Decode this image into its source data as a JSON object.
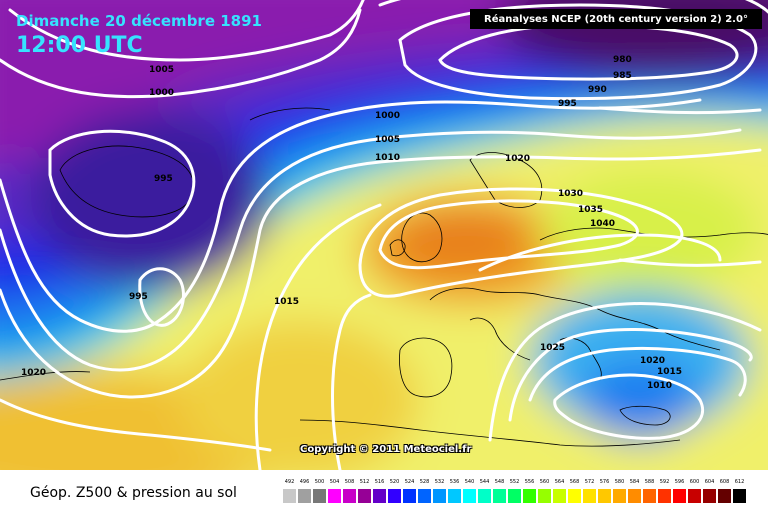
{
  "header": {
    "date": "Dimanche 20 décembre 1891",
    "time": "12:00 UTC",
    "source": "Réanalyses NCEP (20th century version 2) 2.0°"
  },
  "copyright": "Copyright © 2011 Meteociel.fr",
  "footer": {
    "label": "Géop. Z500 & pression au sol"
  },
  "legend": {
    "values": [
      "492",
      "496",
      "500",
      "504",
      "508",
      "512",
      "516",
      "520",
      "524",
      "528",
      "532",
      "536",
      "540",
      "544",
      "548",
      "552",
      "556",
      "560",
      "564",
      "568",
      "572",
      "576",
      "580",
      "584",
      "588",
      "592",
      "596",
      "600",
      "604",
      "608",
      "612"
    ],
    "colors": [
      "#c8c8c8",
      "#a0a0a0",
      "#787878",
      "#ff00ff",
      "#c800c8",
      "#960096",
      "#6400c8",
      "#3200ff",
      "#0032ff",
      "#0064ff",
      "#0096ff",
      "#00c8ff",
      "#00ffff",
      "#00ffc8",
      "#00ff96",
      "#00ff64",
      "#32ff00",
      "#96ff00",
      "#c8ff00",
      "#ffff00",
      "#ffe100",
      "#ffc800",
      "#ffaa00",
      "#ff8c00",
      "#ff6400",
      "#ff3200",
      "#ff0000",
      "#c80000",
      "#960000",
      "#640000",
      "#000000"
    ]
  },
  "isobar_labels": [
    "1005",
    "1000",
    "995",
    "1000",
    "1005",
    "1010",
    "980",
    "985",
    "990",
    "995",
    "1020",
    "1030",
    "1035",
    "1040",
    "1015",
    "995",
    "1020",
    "1025",
    "1020",
    "1015",
    "1010"
  ]
}
